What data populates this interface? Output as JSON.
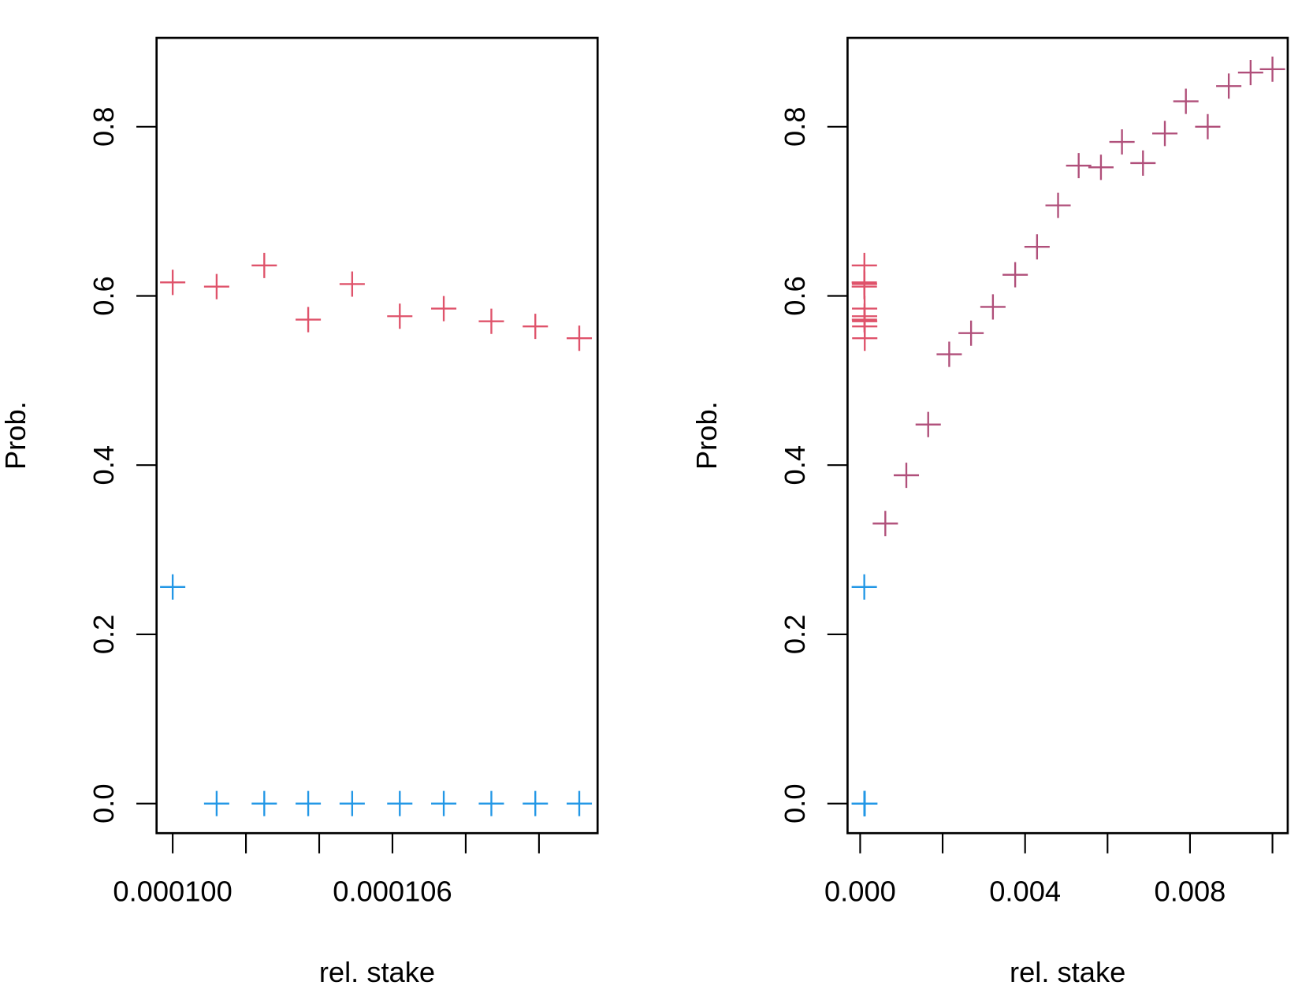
{
  "chart_data": [
    {
      "type": "scatter",
      "xlabel": "rel. stake",
      "ylabel": "Prob.",
      "xlim": [
        9.956e-05,
        0.0001116
      ],
      "ylim": [
        -0.035,
        0.905
      ],
      "xticks": [
        {
          "value": 0.0001,
          "label": "0.000100"
        },
        {
          "value": 0.000102,
          "label": null
        },
        {
          "value": 0.000104,
          "label": null
        },
        {
          "value": 0.000106,
          "label": "0.000106"
        },
        {
          "value": 0.000108,
          "label": null
        },
        {
          "value": 0.00011,
          "label": null
        }
      ],
      "yticks": [
        {
          "value": 0,
          "label": "0.0"
        },
        0.2,
        0.4,
        0.6,
        0.8
      ],
      "series": [
        {
          "color": "#df536b",
          "x": [
            0.0001,
            0.0001012,
            0.0001025,
            0.0001037,
            0.0001049,
            0.0001062,
            0.0001074,
            0.0001087,
            0.0001099,
            0.0001111
          ],
          "values": [
            0.616,
            0.611,
            0.636,
            0.572,
            0.614,
            0.576,
            0.585,
            0.57,
            0.564,
            0.55
          ]
        },
        {
          "color": "#2297e6",
          "x": [
            0.0001,
            0.0001012,
            0.0001025,
            0.0001037,
            0.0001049,
            0.0001062,
            0.0001074,
            0.0001087,
            0.0001099,
            0.0001111
          ],
          "values": [
            0.256,
            0,
            0,
            0,
            0,
            0,
            0,
            0,
            0,
            0
          ]
        }
      ]
    },
    {
      "type": "scatter",
      "xlabel": "rel. stake",
      "ylabel": "Prob.",
      "xlim": [
        -0.000306,
        0.01037
      ],
      "ylim": [
        -0.035,
        0.905
      ],
      "xticks": [
        {
          "value": 0,
          "label": "0.000"
        },
        {
          "value": 0.002,
          "label": null
        },
        0.004,
        {
          "value": 0.006,
          "label": null
        },
        0.008,
        {
          "value": 0.01,
          "label": null
        }
      ],
      "yticks": [
        {
          "value": 0,
          "label": "0.0"
        },
        0.2,
        0.4,
        0.6,
        0.8
      ],
      "series": [
        {
          "color": "#df536b",
          "x": [
            0.0001,
            0.0001012,
            0.0001025,
            0.0001037,
            0.0001049,
            0.0001062,
            0.0001074,
            0.0001087,
            0.0001099,
            0.0001111
          ],
          "values": [
            0.616,
            0.611,
            0.636,
            0.572,
            0.614,
            0.576,
            0.585,
            0.57,
            0.564,
            0.55
          ]
        },
        {
          "color": "#2297e6",
          "x": [
            0.0001,
            0.0001012,
            0.0001025,
            0.0001037,
            0.0001049,
            0.0001062,
            0.0001074,
            0.0001087,
            0.0001099,
            0.0001111
          ],
          "values": [
            0.256,
            0,
            0,
            0,
            0,
            0,
            0,
            0,
            0,
            0
          ]
        },
        {
          "color": "#b04f7a",
          "x": [
            0.00061,
            0.00112,
            0.00165,
            0.00216,
            0.00269,
            0.00322,
            0.00376,
            0.00429,
            0.0048,
            0.0053,
            0.00584,
            0.00635,
            0.00686,
            0.00739,
            0.0079,
            0.00843,
            0.00894,
            0.00947,
            0.01
          ],
          "values": [
            0.331,
            0.388,
            0.448,
            0.531,
            0.556,
            0.587,
            0.625,
            0.658,
            0.707,
            0.754,
            0.752,
            0.782,
            0.757,
            0.792,
            0.83,
            0.8,
            0.848,
            0.864,
            0.868
          ]
        }
      ]
    }
  ]
}
